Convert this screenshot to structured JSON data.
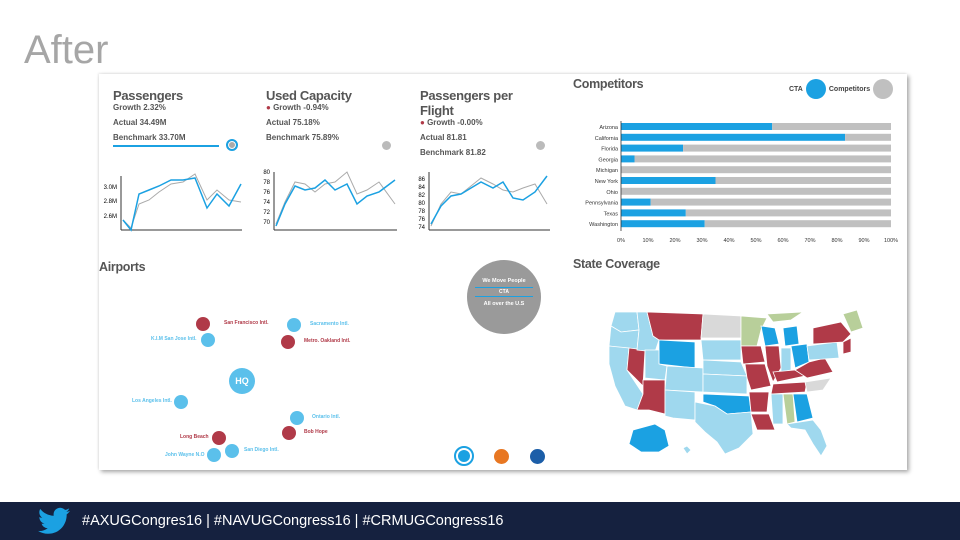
{
  "slide": {
    "title": "After"
  },
  "kpis": [
    {
      "title": "Passengers",
      "growth": "Growth 2.32%",
      "actual": "Actual 34.49M",
      "benchmark": "Benchmark 33.70M",
      "y_ticks": [
        "3.0M",
        "2.8M",
        "2.6M"
      ]
    },
    {
      "title": "Used Capacity",
      "growth": "Growth -0.94%",
      "actual": "Actual 75.18%",
      "benchmark": "Benchmark 75.89%",
      "y_ticks": [
        "80",
        "78",
        "76",
        "74",
        "72",
        "70"
      ]
    },
    {
      "title": "Passengers per Flight",
      "growth": "Growth -0.00%",
      "actual": "Actual 81.81",
      "benchmark": "Benchmark 81.82",
      "y_ticks": [
        "86",
        "84",
        "82",
        "80",
        "78",
        "76",
        "74"
      ]
    }
  ],
  "competitors": {
    "title": "Competitors",
    "legend": {
      "cta": "CTA",
      "competitors": "Competitors"
    },
    "colors": {
      "cta": "#1ba1e2",
      "competitors": "#c0c0c0"
    }
  },
  "chart_data": {
    "type": "bar",
    "orientation": "horizontal",
    "stacked_percent": true,
    "categories": [
      "Arizona",
      "California",
      "Florida",
      "Georgia",
      "Michigan",
      "New York",
      "Ohio",
      "Pennsylvania",
      "Texas",
      "Washington"
    ],
    "series": [
      {
        "name": "CTA",
        "values": [
          56,
          83,
          23,
          5,
          0,
          35,
          0,
          11,
          24,
          31
        ]
      },
      {
        "name": "Competitors",
        "values": [
          44,
          17,
          77,
          95,
          100,
          65,
          100,
          89,
          76,
          69
        ]
      }
    ],
    "x_ticks": [
      "0%",
      "10%",
      "20%",
      "30%",
      "40%",
      "50%",
      "60%",
      "70%",
      "80%",
      "90%",
      "100%"
    ],
    "xlim": [
      0,
      100
    ]
  },
  "airports": {
    "title": "Airports",
    "hq_label": "HQ",
    "items": [
      {
        "name": "San Francisco Intl.",
        "type": "competitor"
      },
      {
        "name": "Sacramento Intl.",
        "type": "cta"
      },
      {
        "name": "K.I.M San Jose Intl.",
        "type": "cta"
      },
      {
        "name": "Metro. Oakland Intl.",
        "type": "competitor"
      },
      {
        "name": "Los Angeles Intl.",
        "type": "cta"
      },
      {
        "name": "Ontario Intl.",
        "type": "cta"
      },
      {
        "name": "Bob Hope",
        "type": "competitor"
      },
      {
        "name": "Long Beach",
        "type": "competitor"
      },
      {
        "name": "John Wayne N.O",
        "type": "cta"
      },
      {
        "name": "San Diego Intl.",
        "type": "cta"
      }
    ]
  },
  "badge": {
    "line1": "We Move People",
    "logo": "CTA",
    "line2": "All over the U.S"
  },
  "state_coverage": {
    "title": "State Coverage"
  },
  "footer": {
    "hashtags": "#AXUGCongres16 | #NAVUGCongress16 | #CRMUGCongress16"
  }
}
